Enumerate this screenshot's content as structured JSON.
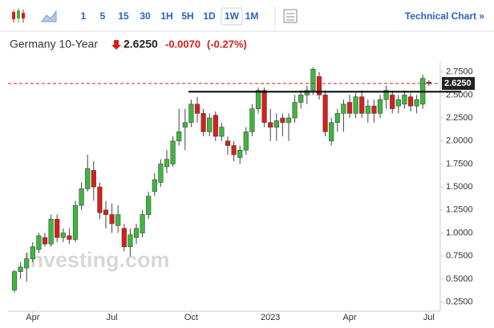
{
  "toolbar": {
    "intervals": [
      "1",
      "5",
      "15",
      "30",
      "1H",
      "5H",
      "1D",
      "1W",
      "1M"
    ],
    "selected": "1W",
    "link": "Technical Chart »"
  },
  "header": {
    "name": "Germany 10-Year",
    "price": "2.6250",
    "change": "-0.0070",
    "change_pct": "(-0.27%)"
  },
  "chart_data": {
    "type": "candlestick",
    "categories": [
      null,
      null,
      null,
      "Apr",
      null,
      null,
      null,
      null,
      null,
      null,
      null,
      null,
      null,
      null,
      null,
      null,
      "Jul",
      null,
      null,
      null,
      null,
      null,
      null,
      null,
      null,
      null,
      null,
      null,
      null,
      "Oct",
      null,
      null,
      null,
      null,
      null,
      null,
      null,
      null,
      null,
      null,
      null,
      null,
      "2023",
      null,
      null,
      null,
      null,
      null,
      null,
      null,
      null,
      null,
      null,
      null,
      null,
      "Apr",
      null,
      null,
      null,
      null,
      null,
      null,
      null,
      null,
      null,
      null,
      null,
      null,
      "Jul"
    ],
    "open": [
      0.38,
      0.58,
      0.62,
      0.72,
      0.82,
      0.95,
      0.88,
      1.15,
      0.95,
      0.97,
      0.93,
      1.3,
      1.48,
      1.68,
      1.5,
      1.25,
      1.2,
      1.08,
      1.05,
      0.85,
      0.95,
      1.0,
      1.2,
      1.45,
      1.55,
      1.72,
      1.75,
      2.0,
      2.15,
      2.2,
      2.4,
      2.3,
      2.1,
      2.28,
      2.05,
      2.0,
      1.95,
      1.82,
      1.9,
      2.1,
      2.35,
      2.55,
      2.2,
      2.15,
      2.25,
      2.2,
      2.25,
      2.42,
      2.5,
      2.55,
      2.7,
      2.5,
      2.0,
      2.2,
      2.3,
      2.42,
      2.3,
      2.48,
      2.3,
      2.38,
      2.3,
      2.45,
      2.5,
      2.38,
      2.4,
      2.48,
      2.38,
      2.4,
      2.64
    ],
    "high": [
      0.6,
      0.68,
      0.78,
      0.9,
      1.0,
      1.0,
      1.2,
      1.2,
      1.05,
      1.05,
      1.35,
      1.55,
      1.85,
      1.78,
      1.55,
      1.35,
      1.32,
      1.3,
      1.1,
      1.05,
      1.1,
      1.25,
      1.45,
      1.65,
      1.8,
      1.9,
      2.05,
      2.35,
      2.35,
      2.45,
      2.48,
      2.35,
      2.3,
      2.32,
      2.2,
      2.05,
      2.0,
      1.95,
      2.15,
      2.4,
      2.58,
      2.58,
      2.35,
      2.3,
      2.3,
      2.3,
      2.5,
      2.55,
      2.6,
      2.8,
      2.75,
      2.55,
      2.25,
      2.35,
      2.45,
      2.5,
      2.52,
      2.55,
      2.45,
      2.45,
      2.5,
      2.6,
      2.55,
      2.5,
      2.55,
      2.52,
      2.5,
      2.72,
      2.66
    ],
    "low": [
      0.35,
      0.5,
      0.47,
      0.68,
      0.78,
      0.85,
      0.85,
      0.9,
      0.9,
      0.88,
      0.9,
      1.25,
      1.45,
      1.35,
      1.15,
      1.05,
      1.0,
      1.0,
      0.8,
      0.75,
      0.88,
      0.95,
      1.15,
      1.4,
      1.5,
      1.65,
      1.72,
      1.95,
      1.9,
      2.15,
      2.2,
      2.05,
      2.05,
      2.0,
      2.0,
      1.85,
      1.78,
      1.75,
      1.85,
      2.05,
      2.3,
      2.15,
      2.0,
      2.0,
      2.05,
      2.0,
      2.2,
      2.35,
      2.4,
      2.5,
      2.45,
      2.05,
      1.95,
      2.1,
      2.1,
      2.25,
      2.25,
      2.25,
      2.2,
      2.2,
      2.25,
      2.35,
      2.3,
      2.3,
      2.35,
      2.32,
      2.3,
      2.35,
      2.6
    ],
    "close": [
      0.58,
      0.63,
      0.72,
      0.85,
      0.97,
      0.88,
      1.15,
      0.95,
      1.0,
      0.93,
      1.3,
      1.48,
      1.7,
      1.5,
      1.22,
      1.2,
      1.1,
      1.2,
      0.85,
      0.98,
      1.05,
      1.2,
      1.4,
      1.58,
      1.75,
      1.8,
      2.0,
      2.1,
      2.2,
      2.4,
      2.3,
      2.1,
      2.25,
      2.05,
      2.15,
      1.95,
      1.85,
      1.9,
      2.1,
      2.35,
      2.55,
      2.2,
      2.15,
      2.22,
      2.2,
      2.25,
      2.42,
      2.5,
      2.55,
      2.78,
      2.5,
      2.1,
      2.2,
      2.3,
      2.4,
      2.3,
      2.48,
      2.3,
      2.38,
      2.3,
      2.45,
      2.55,
      2.35,
      2.45,
      2.5,
      2.38,
      2.45,
      2.68,
      2.625
    ],
    "up_color": "#3cb83c",
    "down_color": "#d91e18",
    "ylim": [
      0.15,
      2.8
    ],
    "yticks": [
      {
        "value": 0.25,
        "label": "0.2500"
      },
      {
        "value": 0.5,
        "label": "0.5000"
      },
      {
        "value": 0.75,
        "label": "0.7500"
      },
      {
        "value": 1.0,
        "label": "1.0000"
      },
      {
        "value": 1.25,
        "label": "1.2500"
      },
      {
        "value": 1.5,
        "label": "1.5000"
      },
      {
        "value": 1.75,
        "label": "1.7500"
      },
      {
        "value": 2.0,
        "label": "2.0000"
      },
      {
        "value": 2.25,
        "label": "2.2500"
      },
      {
        "value": 2.5,
        "label": "2.5000"
      },
      {
        "value": 2.75,
        "label": "2.7500"
      }
    ],
    "price_line": {
      "value": 2.625,
      "label": "2.6250"
    },
    "support_line": {
      "value": 2.535
    },
    "watermark": "Investing.com"
  }
}
